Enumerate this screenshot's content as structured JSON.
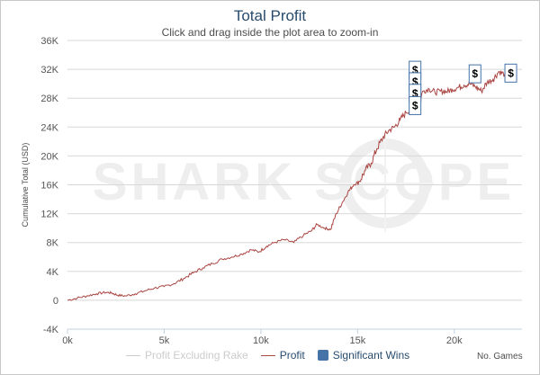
{
  "header": {
    "title": "Total Profit",
    "subtitle": "Click and drag inside the plot area to zoom-in"
  },
  "watermark": "SHARK SCOPE",
  "legend": [
    {
      "name": "Profit Excluding Rake",
      "color": "#cccccc",
      "kind": "line",
      "muted": true
    },
    {
      "name": "Profit",
      "color": "#aa4643",
      "kind": "line",
      "muted": false
    },
    {
      "name": "Significant Wins",
      "color": "#4572a7",
      "kind": "box",
      "muted": false
    }
  ],
  "chart_data": {
    "type": "line",
    "ylabel": "Cumulative Total (USD)",
    "xlabel": "No. Games",
    "xlim": [
      0,
      23500
    ],
    "ylim": [
      -4000,
      36000
    ],
    "x_ticks": [
      "0k",
      "5k",
      "10k",
      "15k",
      "20k"
    ],
    "x_tick_values": [
      0,
      5000,
      10000,
      15000,
      20000
    ],
    "y_ticks": [
      "-4K",
      "0",
      "4K",
      "8K",
      "12K",
      "16K",
      "20K",
      "24K",
      "28K",
      "32K",
      "36K"
    ],
    "y_tick_values": [
      -4000,
      0,
      4000,
      8000,
      12000,
      16000,
      20000,
      24000,
      28000,
      32000,
      36000
    ],
    "series": [
      {
        "name": "Profit",
        "color": "#aa4643",
        "x": [
          0,
          500,
          1000,
          1500,
          2000,
          2300,
          2600,
          3000,
          3500,
          4000,
          4500,
          5000,
          5500,
          6000,
          6500,
          7000,
          7500,
          8000,
          8500,
          9000,
          9500,
          9900,
          10300,
          10700,
          11200,
          11700,
          12200,
          12600,
          12900,
          13300,
          13600,
          13900,
          14200,
          14500,
          14800,
          15100,
          15400,
          15700,
          16000,
          16300,
          16600,
          16900,
          17200,
          17500,
          17800,
          18100,
          18400,
          18700,
          19000,
          19300,
          19600,
          19900,
          20200,
          20500,
          20800,
          21100,
          21400,
          21700,
          22000,
          22300,
          22600,
          22900,
          23200
        ],
        "y": [
          0,
          300,
          600,
          900,
          1100,
          1000,
          700,
          600,
          900,
          1300,
          1700,
          1900,
          2300,
          3000,
          3800,
          4500,
          5100,
          5700,
          6000,
          6400,
          7000,
          6700,
          7500,
          8000,
          8400,
          8000,
          9000,
          9600,
          10500,
          10000,
          9800,
          12000,
          13500,
          15000,
          16000,
          16500,
          18000,
          19000,
          21000,
          22500,
          23500,
          24000,
          25000,
          26000,
          26500,
          27500,
          29000,
          29300,
          28800,
          29000,
          28900,
          29200,
          29500,
          29800,
          30000,
          29600,
          29000,
          30200,
          30600,
          31700,
          31300,
          30500,
          30800
        ]
      }
    ],
    "significant_wins": [
      {
        "x": 17900,
        "y": 32000,
        "label": "$"
      },
      {
        "x": 17900,
        "y": 30400,
        "label": "$"
      },
      {
        "x": 17900,
        "y": 28800,
        "label": "$"
      },
      {
        "x": 17900,
        "y": 27100,
        "label": "$"
      },
      {
        "x": 21000,
        "y": 31500,
        "label": "$"
      },
      {
        "x": 22850,
        "y": 31600,
        "label": "$"
      }
    ]
  }
}
